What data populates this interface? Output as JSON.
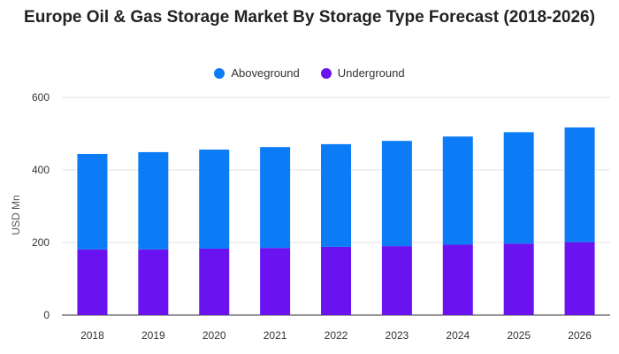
{
  "chart_data": {
    "type": "bar",
    "stacked": true,
    "title": "Europe Oil & Gas Storage Market By Storage Type Forecast (2018-2026)",
    "xlabel": "",
    "ylabel": "USD Mn",
    "ylim": [
      0,
      600
    ],
    "yticks": [
      0,
      200,
      400,
      600
    ],
    "grid": true,
    "legend_position": "top-center",
    "categories": [
      "2018",
      "2019",
      "2020",
      "2021",
      "2022",
      "2023",
      "2024",
      "2025",
      "2026"
    ],
    "series": [
      {
        "name": "Underground",
        "color": "#6a12f0",
        "values": [
          181,
          181,
          183,
          185,
          188,
          190,
          194,
          197,
          201
        ]
      },
      {
        "name": "Aboveground",
        "color": "#0b7cf5",
        "values": [
          263,
          268,
          273,
          278,
          283,
          290,
          298,
          307,
          316
        ]
      }
    ],
    "legend_order": [
      "Aboveground",
      "Underground"
    ]
  }
}
